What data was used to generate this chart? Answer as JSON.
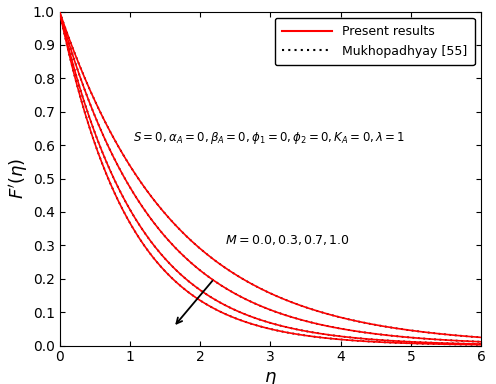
{
  "title": "",
  "xlabel": "$\\eta$",
  "ylabel": "$F^{\\prime}(\\eta)$",
  "xlim": [
    0,
    6
  ],
  "ylim": [
    0,
    1
  ],
  "M_values": [
    0.0,
    0.3,
    0.7,
    1.0
  ],
  "annotation_text": "$M = 0.0, 0.3, 0.7, 1.0$",
  "params_text": "$S = 0, \\alpha_A = 0, \\beta_A = 0, \\phi_1 = 0, \\phi_2 = 0, K_A = 0, \\lambda = 1$",
  "legend_present": "Present results",
  "legend_mukho": "Mukhopadhyay [55]",
  "line_color_present": "#ff0000",
  "line_color_mukho": "#000000",
  "figsize": [
    4.96,
    3.84
  ],
  "dpi": 100
}
